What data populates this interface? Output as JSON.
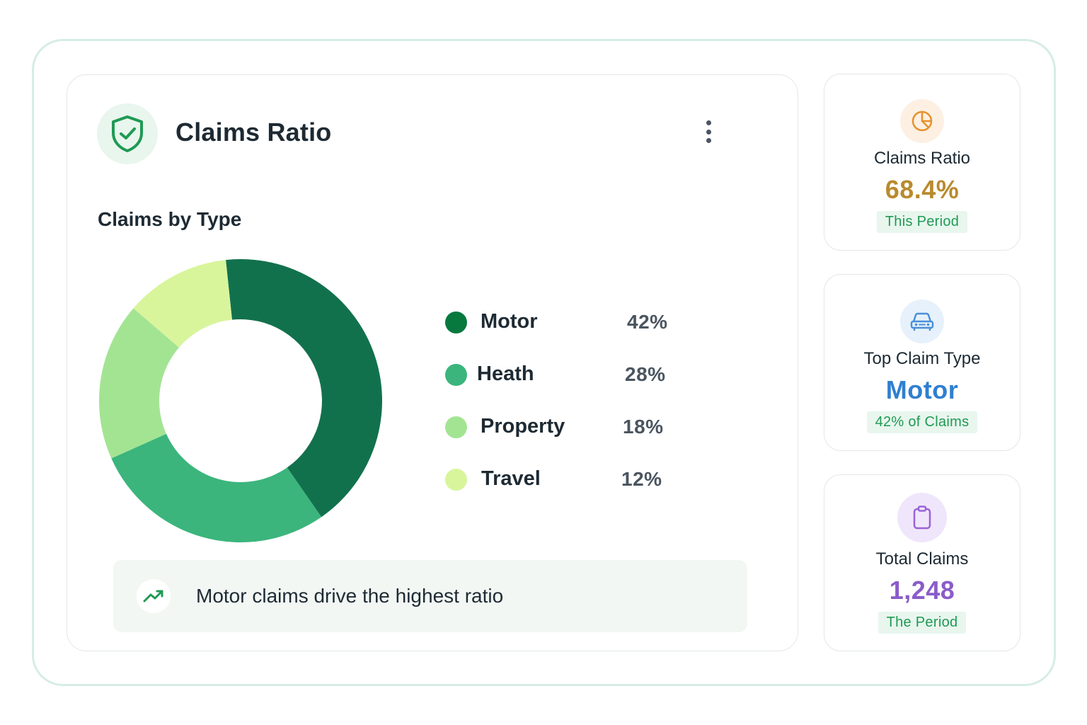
{
  "header": {
    "title": "Claims Ratio",
    "icon": "shield-check-icon",
    "menu_icon": "kebab-menu-icon"
  },
  "section": {
    "title": "Claims by Type"
  },
  "chart_data": {
    "type": "pie",
    "variant": "donut",
    "title": "",
    "categories": [
      "Motor",
      "Heath",
      "Property",
      "Travel"
    ],
    "values": [
      42,
      28,
      18,
      12
    ],
    "value_labels": [
      "42%",
      "28%",
      "18%",
      "12%"
    ],
    "colors": [
      "#12714d",
      "#3bb57c",
      "#a3e493",
      "#d8f59c"
    ],
    "legend_position": "right"
  },
  "insight": {
    "icon": "trending-up-icon",
    "text": "Motor claims drive the highest ratio"
  },
  "stats": [
    {
      "icon": "pie-chart-icon",
      "label": "Claims Ratio",
      "value": "68.4%",
      "badge": "This Period",
      "value_color": "#b98a2e",
      "icon_bg": "#fdf0e3",
      "icon_color": "#e6922f"
    },
    {
      "icon": "car-icon",
      "label": "Top Claim Type",
      "value": "Motor",
      "badge": "42% of Claims",
      "value_color": "#2f7fd0",
      "icon_bg": "#e7f1fb",
      "icon_color": "#4a90d9"
    },
    {
      "icon": "clipboard-icon",
      "label": "Total Claims",
      "value": "1,248",
      "badge": "The Period",
      "value_color": "#8a5cc9",
      "icon_bg": "#f0e6fb",
      "icon_color": "#9a63d6"
    }
  ]
}
